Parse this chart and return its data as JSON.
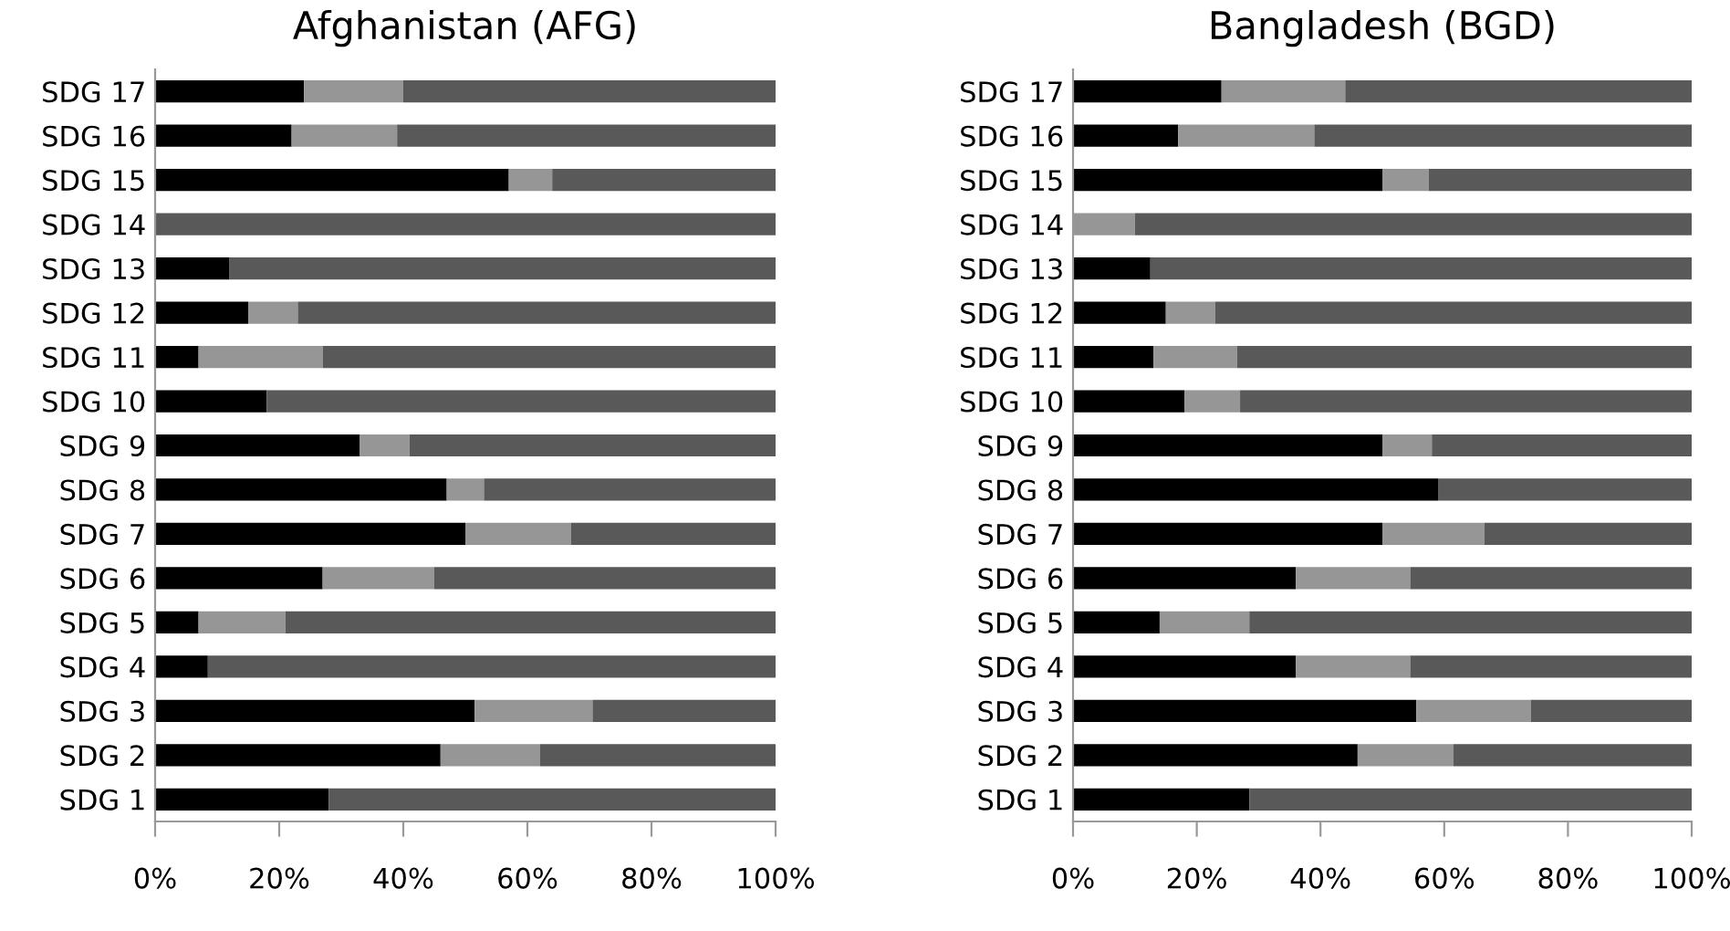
{
  "chart_data": [
    {
      "type": "bar",
      "title": "Afghanistan (AFG)",
      "orientation": "horizontal",
      "stacked": true,
      "grid": false,
      "categories": [
        "SDG 17",
        "SDG 16",
        "SDG 15",
        "SDG 14",
        "SDG 13",
        "SDG 12",
        "SDG 11",
        "SDG 10",
        "SDG 9",
        "SDG 8",
        "SDG 7",
        "SDG 6",
        "SDG 5",
        "SDG 4",
        "SDG 3",
        "SDG 2",
        "SDG 1"
      ],
      "series": [
        {
          "color": "#000000",
          "values": [
            24,
            22,
            57,
            0,
            12,
            15,
            7,
            18,
            33,
            47,
            50,
            27,
            7,
            8.5,
            51.5,
            46,
            28
          ]
        },
        {
          "color": "#969696",
          "values": [
            16,
            17,
            7,
            0,
            0,
            8,
            20,
            0,
            8,
            6,
            17,
            18,
            14,
            0,
            19,
            16,
            0
          ]
        },
        {
          "color": "#595959",
          "values": [
            60,
            61,
            36,
            100,
            88,
            77,
            73,
            82,
            59,
            47,
            33,
            55,
            79,
            91.5,
            29.5,
            38,
            72
          ]
        }
      ],
      "xlim": [
        0,
        100
      ],
      "xticks": [
        {
          "value": 0,
          "label": "0%"
        },
        {
          "value": 20,
          "label": "20%"
        },
        {
          "value": 40,
          "label": "40%"
        },
        {
          "value": 60,
          "label": "60%"
        },
        {
          "value": 80,
          "label": "80%"
        },
        {
          "value": 100,
          "label": "100%"
        }
      ]
    },
    {
      "type": "bar",
      "title": "Bangladesh (BGD)",
      "orientation": "horizontal",
      "stacked": true,
      "grid": false,
      "categories": [
        "SDG 17",
        "SDG 16",
        "SDG 15",
        "SDG 14",
        "SDG 13",
        "SDG 12",
        "SDG 11",
        "SDG 10",
        "SDG 9",
        "SDG 8",
        "SDG 7",
        "SDG 6",
        "SDG 5",
        "SDG 4",
        "SDG 3",
        "SDG 2",
        "SDG 1"
      ],
      "series": [
        {
          "color": "#000000",
          "values": [
            24,
            17,
            50,
            0,
            12.5,
            15,
            13,
            18,
            50,
            59,
            50,
            36,
            14,
            36,
            55.5,
            46,
            28.5
          ]
        },
        {
          "color": "#969696",
          "values": [
            20,
            22,
            7.5,
            10,
            0,
            8,
            13.5,
            9,
            8,
            0,
            16.5,
            18.5,
            14.5,
            18.5,
            18.5,
            15.5,
            0
          ]
        },
        {
          "color": "#595959",
          "values": [
            56,
            61,
            42.5,
            90,
            87.5,
            77,
            73.5,
            73,
            42,
            41,
            33.5,
            45.5,
            71.5,
            45.5,
            26,
            38.5,
            71.5
          ]
        }
      ],
      "xlim": [
        0,
        100
      ],
      "xticks": [
        {
          "value": 0,
          "label": "0%"
        },
        {
          "value": 20,
          "label": "20%"
        },
        {
          "value": 40,
          "label": "40%"
        },
        {
          "value": 60,
          "label": "60%"
        },
        {
          "value": 80,
          "label": "80%"
        },
        {
          "value": 100,
          "label": "100%"
        }
      ]
    }
  ]
}
